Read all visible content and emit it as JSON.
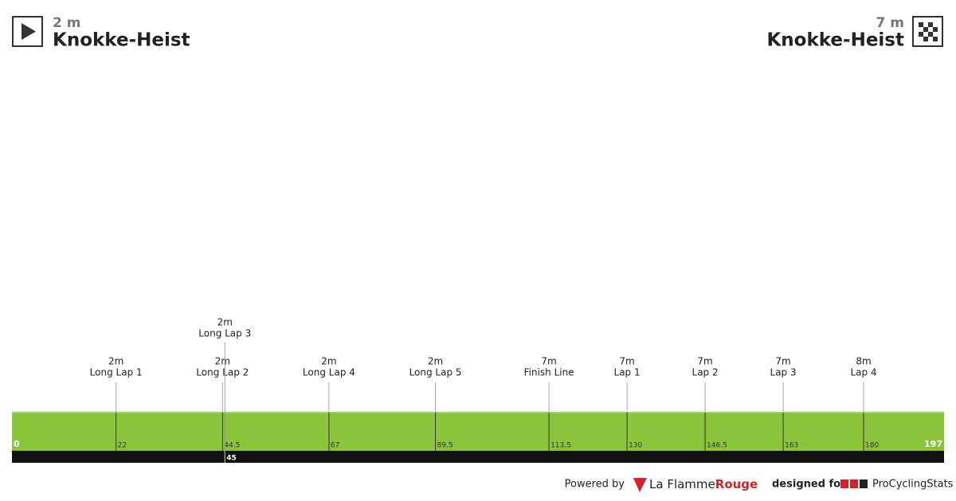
{
  "chart_data": {
    "type": "profile",
    "start": {
      "elevation": "2 m",
      "name": "Knokke-Heist"
    },
    "finish": {
      "elevation": "7 m",
      "name": "Knokke-Heist"
    },
    "color": "#8ac43a",
    "xlim": [
      0,
      197
    ],
    "xticks": [
      0,
      22,
      44.5,
      67,
      89.5,
      113.5,
      130,
      146.5,
      163,
      180,
      197
    ],
    "bar_ticks": [
      45
    ],
    "markers": [
      {
        "km": 22,
        "elevation": "2m",
        "name": "Long Lap 1"
      },
      {
        "km": 44.5,
        "elevation": "2m",
        "name": "Long Lap 2"
      },
      {
        "km": 45,
        "elevation": "2m",
        "name": "Long Lap 3"
      },
      {
        "km": 67,
        "elevation": "2m",
        "name": "Long Lap 4"
      },
      {
        "km": 89.5,
        "elevation": "2m",
        "name": "Long Lap 5"
      },
      {
        "km": 113.5,
        "elevation": "7m",
        "name": "Finish Line"
      },
      {
        "km": 130,
        "elevation": "7m",
        "name": "Lap 1"
      },
      {
        "km": 146.5,
        "elevation": "7m",
        "name": "Lap 2"
      },
      {
        "km": 163,
        "elevation": "7m",
        "name": "Lap 3"
      },
      {
        "km": 180,
        "elevation": "8m",
        "name": "Lap 4"
      }
    ]
  },
  "footer": {
    "powered_by": "Powered by",
    "flamme": "La Flamme",
    "rouge": "Rouge",
    "designed_for": "designed for",
    "pcs": "ProCyclingStats"
  }
}
